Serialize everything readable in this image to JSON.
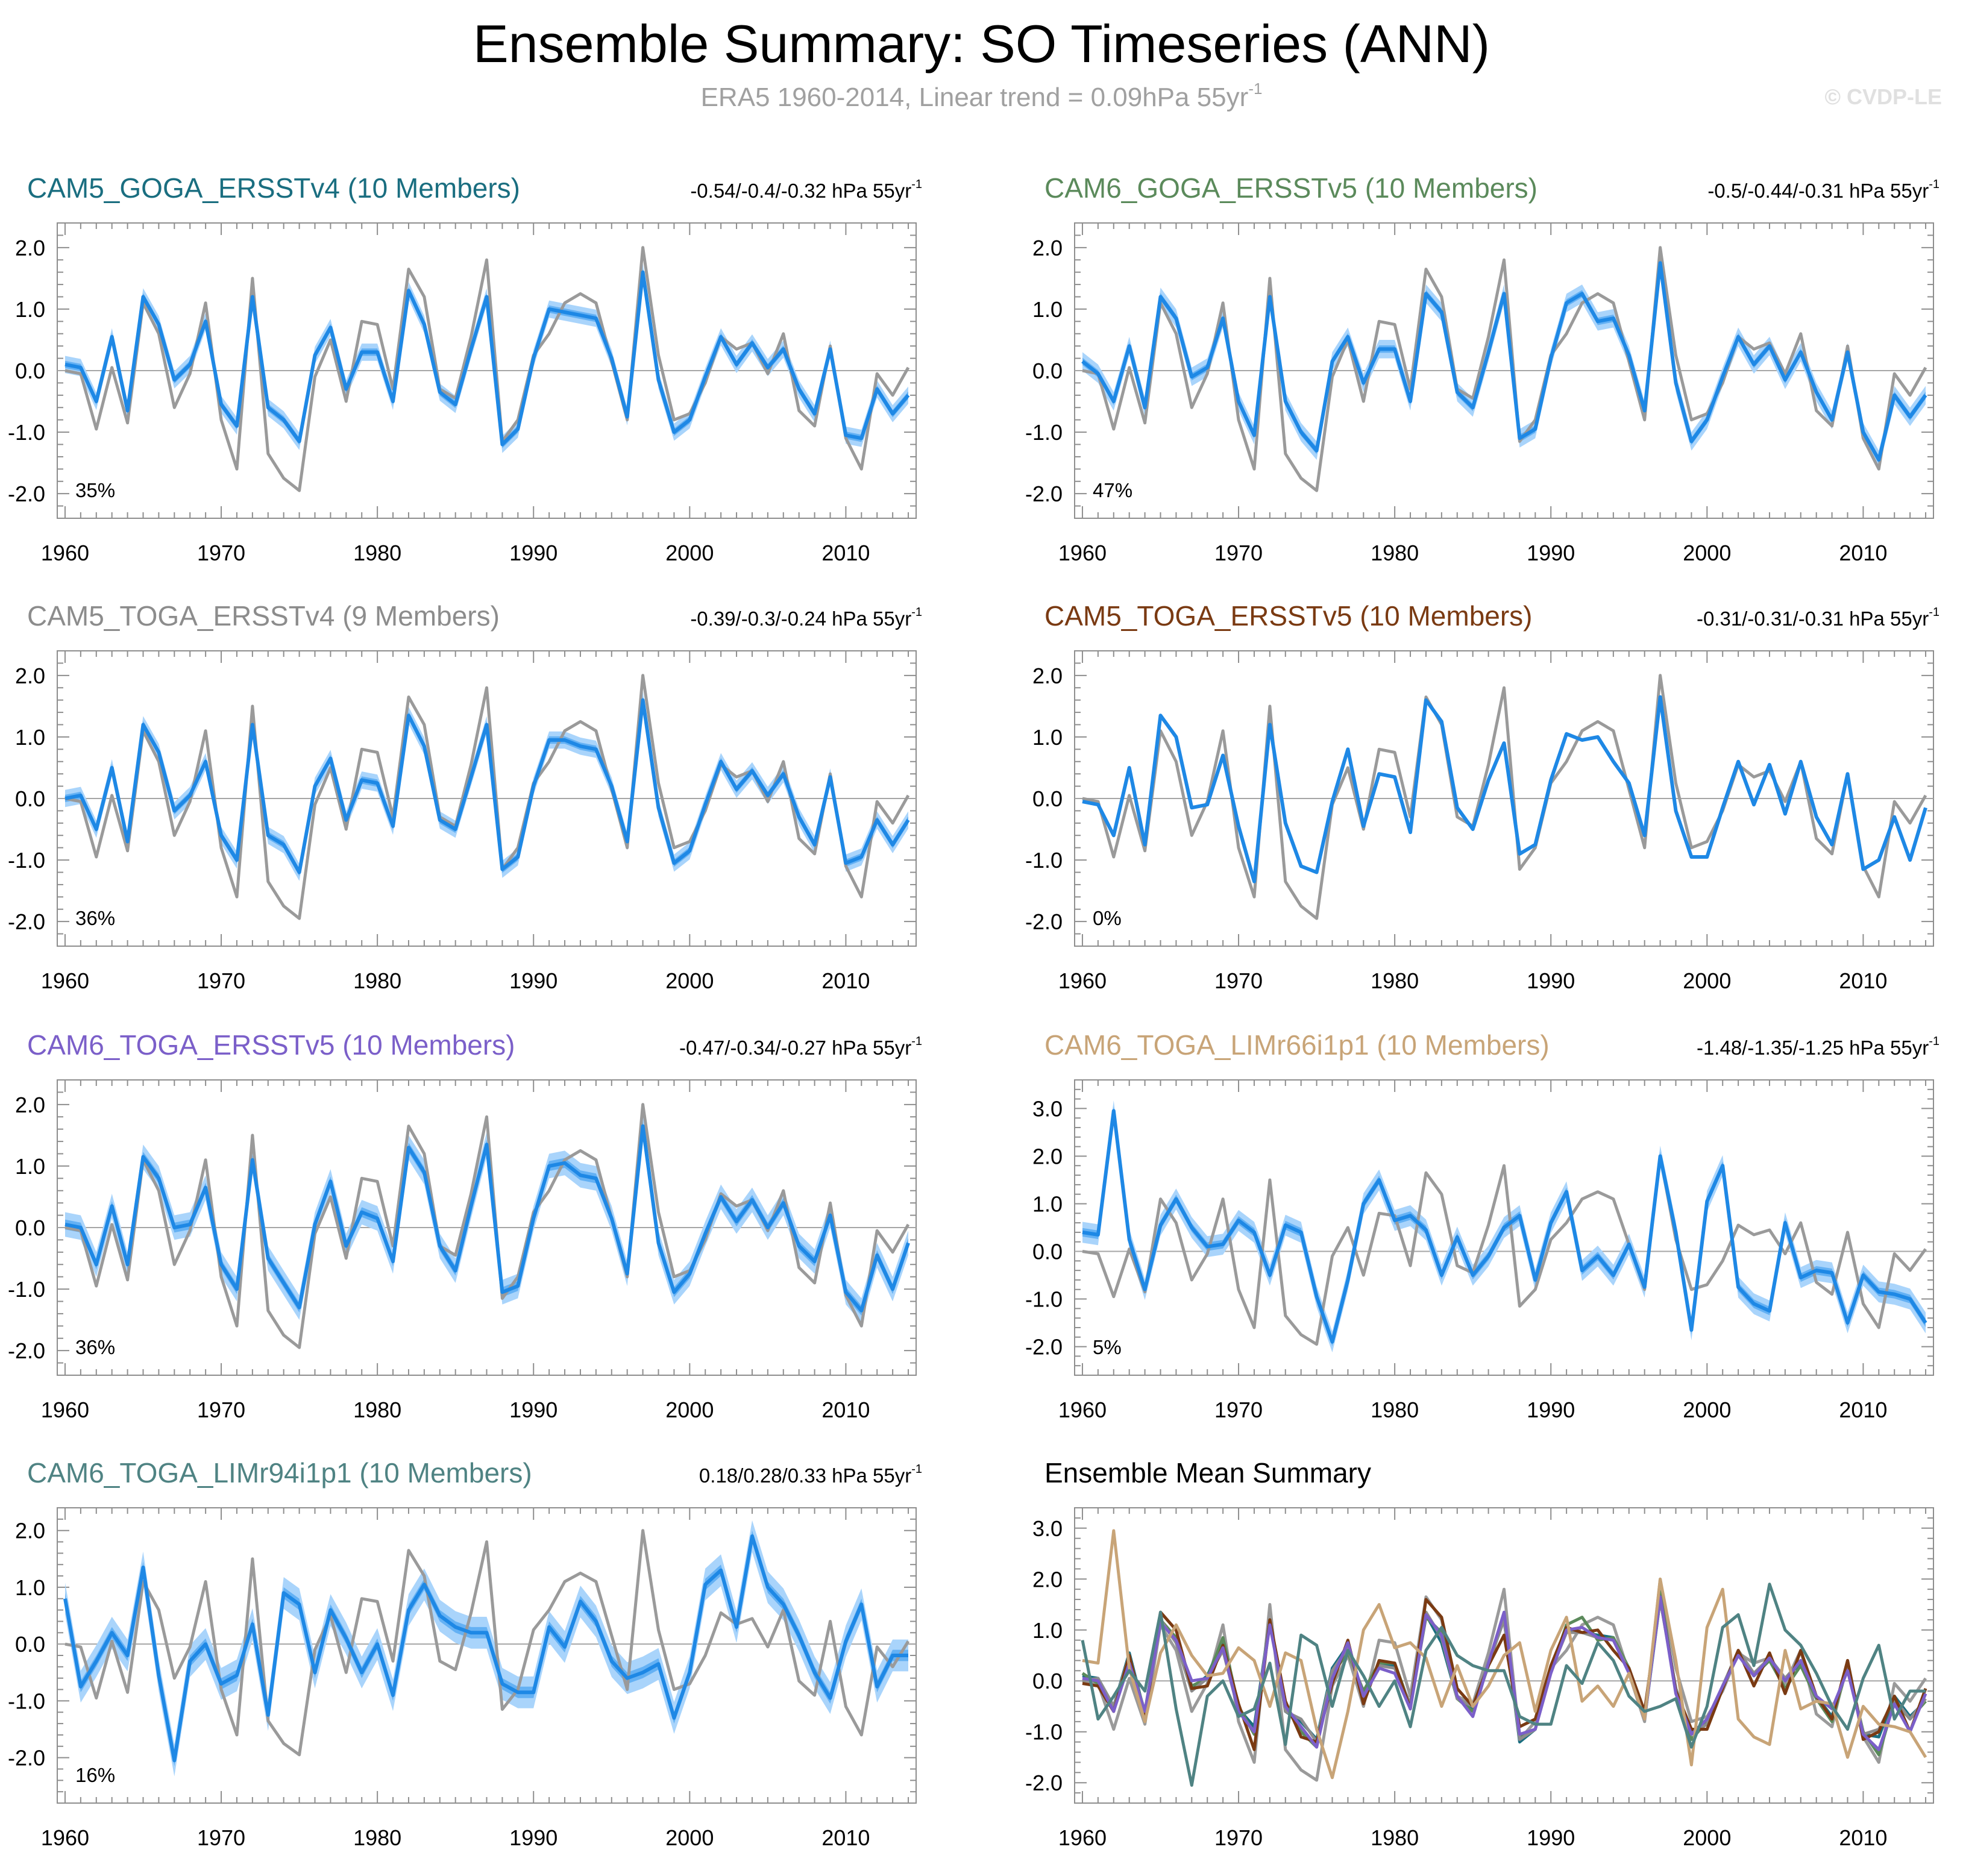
{
  "title": "Ensemble Summary: SO Timeseries (ANN)",
  "subtitle": "ERA5 1960-2014, Linear trend = 0.09hPa 55yr",
  "subtitle_sup": "-1",
  "credit": "© CVDP-LE",
  "colors": {
    "obs": "#9a9a9a",
    "mean": "#1e88e5",
    "band_outer": "#a9d4fb",
    "band_inner": "#64b1f4",
    "zero": "#a6a6a6"
  },
  "obs": [
    0.0,
    -0.05,
    -0.95,
    0.05,
    -0.85,
    1.1,
    0.6,
    -0.6,
    -0.05,
    1.1,
    -0.8,
    -1.6,
    1.5,
    -1.35,
    -1.75,
    -1.95,
    -0.1,
    0.5,
    -0.5,
    0.8,
    0.75,
    -0.3,
    1.65,
    1.2,
    -0.3,
    -0.45,
    0.55,
    1.8,
    -1.15,
    -0.8,
    0.25,
    0.6,
    1.1,
    1.25,
    1.1,
    0.15,
    -0.8,
    2.0,
    0.25,
    -0.8,
    -0.7,
    -0.2,
    0.55,
    0.35,
    0.45,
    -0.05,
    0.6,
    -0.65,
    -0.9,
    0.4,
    -1.1,
    -1.6,
    -0.05,
    -0.4,
    0.05
  ],
  "chart_data": [
    {
      "type": "line",
      "id": "p1",
      "title": "CAM5_GOGA_ERSSTv4 (10 Members)",
      "title_color": "#1a6e80",
      "trend": "-0.54/-0.4/-0.32 hPa 55yr",
      "trend_sup": "-1",
      "pct": "35%",
      "ylim": [
        -2.4,
        2.4
      ],
      "yticks": [
        2.0,
        1.0,
        0.0,
        -1.0,
        -2.0
      ],
      "yticklabels": [
        "2.0",
        "1.0",
        "0.0",
        "-1.0",
        "-2.0"
      ],
      "xlim": [
        1959.5,
        2014.5
      ],
      "xticks": [
        1960,
        1970,
        1980,
        1990,
        2000,
        2010
      ],
      "xticklabels": [
        "1960",
        "1970",
        "1980",
        "1990",
        "2000",
        "2010"
      ],
      "mean": [
        0.1,
        0.05,
        -0.5,
        0.55,
        -0.65,
        1.2,
        0.75,
        -0.15,
        0.1,
        0.8,
        -0.55,
        -0.9,
        1.2,
        -0.6,
        -0.8,
        -1.15,
        0.25,
        0.7,
        -0.3,
        0.3,
        0.3,
        -0.5,
        1.3,
        0.75,
        -0.35,
        -0.55,
        0.35,
        1.2,
        -1.2,
        -0.95,
        0.2,
        1.0,
        0.95,
        0.9,
        0.85,
        0.2,
        -0.75,
        1.6,
        -0.15,
        -1.0,
        -0.8,
        -0.1,
        0.55,
        0.1,
        0.45,
        0.05,
        0.35,
        -0.3,
        -0.7,
        0.35,
        -1.05,
        -1.1,
        -0.3,
        -0.7,
        -0.4
      ],
      "spread_outer": 0.14,
      "spread_inner": 0.06
    },
    {
      "type": "line",
      "id": "p2",
      "title": "CAM6_GOGA_ERSSTv5 (10 Members)",
      "title_color": "#5b8a5b",
      "trend": "-0.5/-0.44/-0.31 hPa 55yr",
      "trend_sup": "-1",
      "pct": "47%",
      "ylim": [
        -2.4,
        2.4
      ],
      "yticks": [
        2.0,
        1.0,
        0.0,
        -1.0,
        -2.0
      ],
      "yticklabels": [
        "2.0",
        "1.0",
        "0.0",
        "-1.0",
        "-2.0"
      ],
      "xlim": [
        1959.5,
        2014.5
      ],
      "xticks": [
        1960,
        1970,
        1980,
        1990,
        2000,
        2010
      ],
      "xticklabels": [
        "1960",
        "1970",
        "1980",
        "1990",
        "2000",
        "2010"
      ],
      "mean": [
        0.15,
        -0.05,
        -0.5,
        0.4,
        -0.6,
        1.2,
        0.85,
        -0.1,
        0.05,
        0.85,
        -0.5,
        -1.05,
        1.2,
        -0.5,
        -1.0,
        -1.3,
        0.15,
        0.55,
        -0.2,
        0.35,
        0.35,
        -0.5,
        1.25,
        0.95,
        -0.35,
        -0.6,
        0.3,
        1.25,
        -1.1,
        -0.95,
        0.2,
        1.1,
        1.25,
        0.8,
        0.85,
        0.25,
        -0.65,
        1.75,
        -0.2,
        -1.15,
        -0.8,
        -0.1,
        0.55,
        0.1,
        0.4,
        -0.15,
        0.3,
        -0.35,
        -0.8,
        0.3,
        -1.0,
        -1.45,
        -0.4,
        -0.75,
        -0.4
      ],
      "spread_outer": 0.15,
      "spread_inner": 0.06
    },
    {
      "type": "line",
      "id": "p3",
      "title": "CAM5_TOGA_ERSSTv4 (9 Members)",
      "title_color": "#8c8c8c",
      "trend": "-0.39/-0.3/-0.24 hPa 55yr",
      "trend_sup": "-1",
      "pct": "36%",
      "ylim": [
        -2.4,
        2.4
      ],
      "yticks": [
        2.0,
        1.0,
        0.0,
        -1.0,
        -2.0
      ],
      "yticklabels": [
        "2.0",
        "1.0",
        "0.0",
        "-1.0",
        "-2.0"
      ],
      "xlim": [
        1959.5,
        2014.5
      ],
      "xticks": [
        1960,
        1970,
        1980,
        1990,
        2000,
        2010
      ],
      "xticklabels": [
        "1960",
        "1970",
        "1980",
        "1990",
        "2000",
        "2010"
      ],
      "mean": [
        0.0,
        0.05,
        -0.5,
        0.5,
        -0.7,
        1.2,
        0.75,
        -0.2,
        0.05,
        0.6,
        -0.6,
        -1.0,
        1.2,
        -0.6,
        -0.75,
        -1.2,
        0.2,
        0.65,
        -0.35,
        0.3,
        0.25,
        -0.45,
        1.35,
        0.85,
        -0.35,
        -0.5,
        0.35,
        1.2,
        -1.15,
        -0.95,
        0.2,
        0.95,
        0.95,
        0.85,
        0.8,
        0.2,
        -0.7,
        1.6,
        -0.15,
        -1.05,
        -0.85,
        -0.1,
        0.6,
        0.15,
        0.45,
        0.05,
        0.4,
        -0.3,
        -0.75,
        0.35,
        -1.05,
        -0.95,
        -0.35,
        -0.75,
        -0.35
      ],
      "spread_outer": 0.14,
      "spread_inner": 0.06
    },
    {
      "type": "line",
      "id": "p4",
      "title": "CAM5_TOGA_ERSSTv5 (10 Members)",
      "title_color": "#7a3a12",
      "trend": "-0.31/-0.31/-0.31 hPa 55yr",
      "trend_sup": "-1",
      "pct": "0%",
      "ylim": [
        -2.4,
        2.4
      ],
      "yticks": [
        2.0,
        1.0,
        0.0,
        -1.0,
        -2.0
      ],
      "yticklabels": [
        "2.0",
        "1.0",
        "0.0",
        "-1.0",
        "-2.0"
      ],
      "xlim": [
        1959.5,
        2014.5
      ],
      "xticks": [
        1960,
        1970,
        1980,
        1990,
        2000,
        2010
      ],
      "xticklabels": [
        "1960",
        "1970",
        "1980",
        "1990",
        "2000",
        "2010"
      ],
      "mean": [
        -0.05,
        -0.1,
        -0.6,
        0.5,
        -0.75,
        1.35,
        1.0,
        -0.15,
        -0.1,
        0.7,
        -0.45,
        -1.35,
        1.2,
        -0.4,
        -1.1,
        -1.2,
        -0.05,
        0.8,
        -0.45,
        0.4,
        0.35,
        -0.55,
        1.6,
        1.25,
        -0.15,
        -0.5,
        0.3,
        0.9,
        -0.9,
        -0.75,
        0.3,
        1.05,
        0.95,
        1.0,
        0.6,
        0.25,
        -0.6,
        1.65,
        -0.2,
        -0.95,
        -0.95,
        -0.15,
        0.6,
        -0.1,
        0.55,
        -0.25,
        0.6,
        -0.3,
        -0.75,
        0.4,
        -1.15,
        -1.0,
        -0.3,
        -1.0,
        -0.15
      ],
      "spread_outer": 0.0,
      "spread_inner": 0.0
    },
    {
      "type": "line",
      "id": "p5",
      "title": "CAM6_TOGA_ERSSTv5 (10 Members)",
      "title_color": "#7b5fc9",
      "trend": "-0.47/-0.34/-0.27 hPa 55yr",
      "trend_sup": "-1",
      "pct": "36%",
      "ylim": [
        -2.4,
        2.4
      ],
      "yticks": [
        2.0,
        1.0,
        0.0,
        -1.0,
        -2.0
      ],
      "yticklabels": [
        "2.0",
        "1.0",
        "0.0",
        "-1.0",
        "-2.0"
      ],
      "xlim": [
        1959.5,
        2014.5
      ],
      "xticks": [
        1960,
        1970,
        1980,
        1990,
        2000,
        2010
      ],
      "xticklabels": [
        "1960",
        "1970",
        "1980",
        "1990",
        "2000",
        "2010"
      ],
      "mean": [
        0.05,
        0.0,
        -0.6,
        0.35,
        -0.6,
        1.15,
        0.8,
        0.0,
        0.05,
        0.65,
        -0.6,
        -1.0,
        1.1,
        -0.5,
        -0.9,
        -1.3,
        0.05,
        0.75,
        -0.3,
        0.25,
        0.15,
        -0.55,
        1.3,
        0.9,
        -0.3,
        -0.7,
        0.35,
        1.35,
        -1.05,
        -0.95,
        0.15,
        1.0,
        1.05,
        0.85,
        0.8,
        0.15,
        -0.75,
        1.65,
        -0.25,
        -1.05,
        -0.75,
        -0.1,
        0.5,
        0.1,
        0.45,
        0.0,
        0.4,
        -0.3,
        -0.55,
        0.2,
        -1.05,
        -1.35,
        -0.45,
        -1.0,
        -0.25
      ],
      "spread_outer": 0.2,
      "spread_inner": 0.08
    },
    {
      "type": "line",
      "id": "p6",
      "title": "CAM6_TOGA_LIMr66i1p1 (10 Members)",
      "title_color": "#c8a477",
      "trend": "-1.48/-1.35/-1.25 hPa 55yr",
      "trend_sup": "-1",
      "pct": "5%",
      "ylim": [
        -2.6,
        3.6
      ],
      "yticks": [
        3.0,
        2.0,
        1.0,
        0.0,
        -1.0,
        -2.0
      ],
      "yticklabels": [
        "3.0",
        "2.0",
        "1.0",
        "0.0",
        "-1.0",
        "-2.0"
      ],
      "xlim": [
        1959.5,
        2014.5
      ],
      "xticks": [
        1960,
        1970,
        1980,
        1990,
        2000,
        2010
      ],
      "xticklabels": [
        "1960",
        "1970",
        "1980",
        "1990",
        "2000",
        "2010"
      ],
      "mean": [
        0.4,
        0.35,
        2.95,
        0.25,
        -0.8,
        0.55,
        1.1,
        0.5,
        0.1,
        0.15,
        0.65,
        0.4,
        -0.5,
        0.55,
        0.4,
        -0.95,
        -1.9,
        -0.6,
        1.0,
        1.5,
        0.65,
        0.75,
        0.45,
        -0.5,
        0.3,
        -0.5,
        -0.1,
        0.5,
        0.75,
        -0.6,
        0.6,
        1.25,
        -0.4,
        -0.1,
        -0.5,
        0.15,
        -0.75,
        2.0,
        0.4,
        -1.65,
        1.05,
        1.8,
        -0.75,
        -1.1,
        -1.25,
        0.6,
        -0.55,
        -0.4,
        -0.45,
        -1.5,
        -0.5,
        -0.85,
        -0.9,
        -1.0,
        -1.5
      ],
      "spread_outer": 0.22,
      "spread_inner": 0.09
    },
    {
      "type": "line",
      "id": "p7",
      "title": "CAM6_TOGA_LIMr94i1p1 (10 Members)",
      "title_color": "#4f8383",
      "trend": "0.18/0.28/0.33 hPa 55yr",
      "trend_sup": "-1",
      "pct": "16%",
      "ylim": [
        -2.8,
        2.4
      ],
      "yticks": [
        2.0,
        1.0,
        0.0,
        -1.0,
        -2.0
      ],
      "yticklabels": [
        "2.0",
        "1.0",
        "0.0",
        "-1.0",
        "-2.0"
      ],
      "xlim": [
        1959.5,
        2014.5
      ],
      "xticks": [
        1960,
        1970,
        1980,
        1990,
        2000,
        2010
      ],
      "xticklabels": [
        "1960",
        "1970",
        "1980",
        "1990",
        "2000",
        "2010"
      ],
      "mean": [
        0.8,
        -0.75,
        -0.3,
        0.2,
        -0.2,
        1.35,
        -0.55,
        -2.05,
        -0.3,
        0.0,
        -0.7,
        -0.55,
        0.35,
        -1.25,
        0.9,
        0.7,
        -0.5,
        0.6,
        0.1,
        -0.5,
        0.0,
        -0.9,
        0.6,
        1.05,
        0.5,
        0.3,
        0.2,
        0.2,
        -0.7,
        -0.85,
        -0.85,
        0.3,
        -0.05,
        0.75,
        0.4,
        -0.3,
        -0.6,
        -0.5,
        -0.35,
        -1.3,
        -0.5,
        1.05,
        1.3,
        0.3,
        1.9,
        1.0,
        0.7,
        0.15,
        -0.5,
        -0.95,
        0.05,
        0.7,
        -0.75,
        -0.2,
        -0.2
      ],
      "spread_outer": 0.28,
      "spread_inner": 0.1
    },
    {
      "type": "line",
      "id": "p8",
      "title": "Ensemble Mean Summary",
      "title_color": "#000000",
      "trend": "",
      "trend_sup": "",
      "pct": "",
      "ylim": [
        -2.4,
        3.4
      ],
      "yticks": [
        3.0,
        2.0,
        1.0,
        0.0,
        -1.0,
        -2.0
      ],
      "yticklabels": [
        "3.0",
        "2.0",
        "1.0",
        "0.0",
        "-1.0",
        "-2.0"
      ],
      "xlim": [
        1959.5,
        2014.5
      ],
      "xticks": [
        1960,
        1970,
        1980,
        1990,
        2000,
        2010
      ],
      "xticklabels": [
        "1960",
        "1970",
        "1980",
        "1990",
        "2000",
        "2010"
      ],
      "summary": true,
      "series": [
        {
          "name": "CAM5_GOGA_ERSSTv4",
          "color": "#1a6e80",
          "ref": "p1"
        },
        {
          "name": "CAM6_GOGA_ERSSTv5",
          "color": "#5b8a5b",
          "ref": "p2"
        },
        {
          "name": "CAM5_TOGA_ERSSTv4",
          "color": "#8c8c8c",
          "ref": "p3"
        },
        {
          "name": "CAM5_TOGA_ERSSTv5",
          "color": "#7a3a12",
          "ref": "p4"
        },
        {
          "name": "CAM6_TOGA_ERSSTv5",
          "color": "#7b5fc9",
          "ref": "p5"
        },
        {
          "name": "CAM6_TOGA_LIMr66i1p1",
          "color": "#c8a477",
          "ref": "p6"
        },
        {
          "name": "CAM6_TOGA_LIMr94i1p1",
          "color": "#4f8383",
          "ref": "p7"
        }
      ]
    }
  ]
}
